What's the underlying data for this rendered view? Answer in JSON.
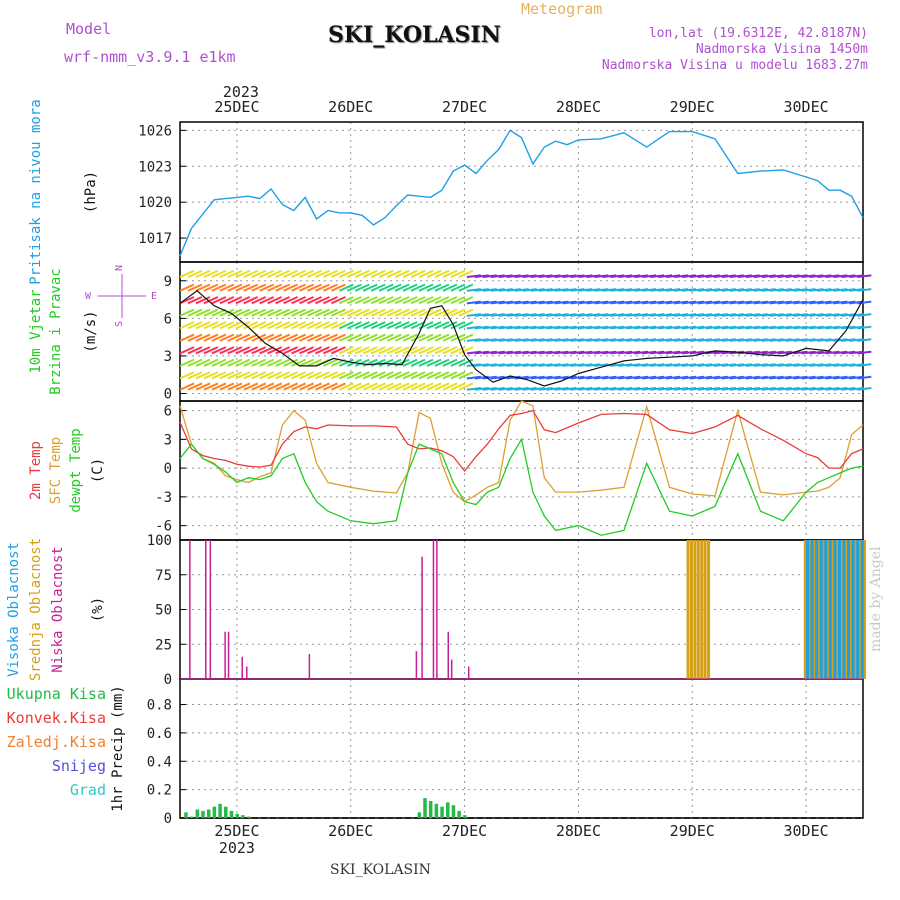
{
  "header": {
    "model_label": "Model",
    "model_name": "wrf-nmm_v3.9.1  e1km",
    "station": "SKI_KOLASIN",
    "product": "Meteogram",
    "coords": "lon,lat (19.6312E, 42.8187N)",
    "elevation": "Nadmorska Visina 1450m",
    "model_elevation": "Nadmorska Visina u modelu 1683.27m",
    "footer_station": "SKI_KOLASIN",
    "credit": "made by Angel"
  },
  "colors": {
    "pressure": "#1ea0e6",
    "temp2m": "#e83c3c",
    "sfc_temp": "#dca032",
    "dewpoint": "#22cc22",
    "high_cloud": "#1ea0e6",
    "mid_cloud": "#d4a017",
    "low_cloud": "#c81e96",
    "total_precip": "#22bb44",
    "conv_precip": "#e83c3c",
    "freezing": "#f08030",
    "snow": "#5050e0",
    "graupel": "#30c8c8",
    "header_purple": "#b050d0",
    "header_orange": "#e8b060"
  },
  "chart_data": [
    {
      "type": "line",
      "name": "pressure",
      "ylabel_lines": [
        "Pritisak na nivou mora",
        "(hPa)"
      ],
      "ylim": [
        1015,
        1026.7
      ],
      "yticks": [
        1017,
        1020,
        1023,
        1026
      ],
      "top_axis_year": "2023",
      "xticks": [
        "25DEC",
        "26DEC",
        "27DEC",
        "28DEC",
        "29DEC",
        "30DEC"
      ],
      "xlim_days": [
        -0.5,
        5.5
      ],
      "grid": true,
      "series": [
        {
          "name": "Pritisak na nivou mora",
          "x": [
            -0.5,
            -0.4,
            -0.3,
            -0.2,
            -0.1,
            0,
            0.1,
            0.2,
            0.3,
            0.4,
            0.5,
            0.6,
            0.7,
            0.8,
            0.9,
            1.0,
            1.1,
            1.2,
            1.3,
            1.4,
            1.5,
            1.6,
            1.7,
            1.8,
            1.9,
            2.0,
            2.1,
            2.2,
            2.3,
            2.4,
            2.5,
            2.6,
            2.7,
            2.8,
            2.9,
            3.0,
            3.2,
            3.4,
            3.6,
            3.8,
            4.0,
            4.2,
            4.4,
            4.6,
            4.8,
            5.0,
            5.1,
            5.2,
            5.3,
            5.4,
            5.5
          ],
          "values": [
            1015.5,
            1017.8,
            1019.0,
            1020.2,
            1020.3,
            1020.4,
            1020.5,
            1020.3,
            1021.1,
            1019.8,
            1019.3,
            1020.4,
            1018.6,
            1019.3,
            1019.1,
            1019.1,
            1018.9,
            1018.1,
            1018.7,
            1019.7,
            1020.6,
            1020.5,
            1020.4,
            1021.0,
            1022.6,
            1023.1,
            1022.4,
            1023.5,
            1024.4,
            1026.0,
            1025.4,
            1023.2,
            1024.6,
            1025.1,
            1024.8,
            1025.2,
            1025.3,
            1025.8,
            1024.6,
            1025.9,
            1025.9,
            1025.3,
            1022.4,
            1022.6,
            1022.7,
            1022.1,
            1021.8,
            1021.0,
            1021.0,
            1020.5,
            1018.7
          ]
        }
      ]
    },
    {
      "type": "line",
      "name": "wind",
      "ylabel_lines": [
        "10m Vjetar",
        "Brzina i Pravac",
        "(m/s)"
      ],
      "compass": [
        "N",
        "E",
        "S",
        "W"
      ],
      "ylim": [
        -0.6,
        10.5
      ],
      "yticks": [
        0,
        3,
        6,
        9
      ],
      "grid": true,
      "series": [
        {
          "name": "10m wind speed",
          "x": [
            -0.5,
            -0.35,
            -0.2,
            -0.05,
            0.1,
            0.25,
            0.4,
            0.55,
            0.7,
            0.85,
            1.0,
            1.15,
            1.3,
            1.45,
            1.6,
            1.7,
            1.8,
            1.9,
            2.0,
            2.1,
            2.25,
            2.4,
            2.55,
            2.7,
            2.85,
            3.0,
            3.2,
            3.4,
            3.6,
            3.8,
            4.0,
            4.2,
            4.4,
            4.6,
            4.8,
            5.0,
            5.2,
            5.35,
            5.5
          ],
          "values": [
            7.2,
            8.2,
            7.0,
            6.4,
            5.3,
            4.0,
            3.2,
            2.2,
            2.2,
            2.8,
            2.5,
            2.3,
            2.4,
            2.3,
            4.8,
            6.8,
            7.0,
            5.5,
            3.1,
            1.9,
            0.9,
            1.4,
            1.1,
            0.6,
            1.0,
            1.6,
            2.1,
            2.6,
            2.8,
            2.9,
            3.0,
            3.4,
            3.3,
            3.1,
            3.0,
            3.6,
            3.4,
            5.0,
            7.5
          ]
        }
      ]
    },
    {
      "type": "line",
      "name": "temperature",
      "ylabel_lines": [
        "2m Temp",
        "SFC Temp",
        "dewpt Temp",
        "(C)"
      ],
      "ylim": [
        -7.5,
        7
      ],
      "yticks": [
        -6,
        -3,
        0,
        3,
        6
      ],
      "grid": true,
      "series": [
        {
          "name": "2m Temp",
          "x": [
            -0.5,
            -0.4,
            -0.3,
            -0.2,
            -0.1,
            0,
            0.1,
            0.2,
            0.3,
            0.4,
            0.5,
            0.6,
            0.7,
            0.8,
            1.0,
            1.2,
            1.4,
            1.5,
            1.6,
            1.7,
            1.8,
            1.9,
            2.0,
            2.1,
            2.2,
            2.3,
            2.4,
            2.5,
            2.6,
            2.7,
            2.8,
            3.0,
            3.2,
            3.4,
            3.6,
            3.8,
            4.0,
            4.2,
            4.4,
            4.6,
            4.8,
            5.0,
            5.1,
            5.2,
            5.3,
            5.4,
            5.5
          ],
          "values": [
            4.8,
            2.0,
            1.3,
            1.0,
            0.8,
            0.4,
            0.2,
            0.1,
            0.3,
            2.5,
            3.8,
            4.3,
            4.1,
            4.5,
            4.4,
            4.4,
            4.3,
            2.5,
            2.0,
            2.1,
            1.8,
            1.2,
            -0.3,
            1.2,
            2.5,
            4.1,
            5.5,
            5.7,
            6.0,
            4.0,
            3.7,
            4.7,
            5.6,
            5.7,
            5.6,
            4.0,
            3.6,
            4.3,
            5.5,
            4.1,
            2.9,
            1.5,
            1.1,
            0.0,
            0.0,
            1.5,
            2.0
          ]
        },
        {
          "name": "SFC Temp",
          "x": [
            -0.5,
            -0.4,
            -0.3,
            -0.2,
            -0.1,
            0,
            0.1,
            0.2,
            0.3,
            0.4,
            0.5,
            0.6,
            0.7,
            0.8,
            1.0,
            1.2,
            1.4,
            1.5,
            1.6,
            1.7,
            1.8,
            1.9,
            2.0,
            2.1,
            2.2,
            2.3,
            2.4,
            2.5,
            2.6,
            2.7,
            2.8,
            3.0,
            3.2,
            3.4,
            3.6,
            3.8,
            4.0,
            4.2,
            4.4,
            4.6,
            4.8,
            5.0,
            5.1,
            5.2,
            5.3,
            5.4,
            5.5
          ],
          "values": [
            6.5,
            2.5,
            1.0,
            0.5,
            -0.8,
            -1.2,
            -1.5,
            -0.9,
            -0.5,
            4.5,
            6.0,
            5.0,
            0.5,
            -1.5,
            -2.0,
            -2.4,
            -2.6,
            -0.5,
            5.8,
            5.2,
            0.5,
            -2.5,
            -3.5,
            -2.8,
            -2.0,
            -1.5,
            5.0,
            7.0,
            6.5,
            -1.0,
            -2.5,
            -2.5,
            -2.3,
            -2.0,
            6.4,
            -2.0,
            -2.7,
            -2.9,
            6.0,
            -2.5,
            -2.8,
            -2.5,
            -2.4,
            -2.0,
            -1.0,
            3.5,
            4.5
          ]
        },
        {
          "name": "dewpt Temp",
          "x": [
            -0.5,
            -0.4,
            -0.3,
            -0.2,
            -0.1,
            0,
            0.1,
            0.2,
            0.3,
            0.4,
            0.5,
            0.6,
            0.7,
            0.8,
            1.0,
            1.2,
            1.4,
            1.5,
            1.6,
            1.7,
            1.8,
            1.9,
            2.0,
            2.1,
            2.2,
            2.3,
            2.4,
            2.5,
            2.6,
            2.7,
            2.8,
            3.0,
            3.2,
            3.4,
            3.6,
            3.8,
            4.0,
            4.2,
            4.4,
            4.6,
            4.8,
            5.0,
            5.1,
            5.2,
            5.3,
            5.4,
            5.5
          ],
          "values": [
            1.0,
            2.5,
            1.0,
            0.4,
            -0.4,
            -1.5,
            -1.0,
            -1.2,
            -0.8,
            1.0,
            1.5,
            -1.5,
            -3.5,
            -4.5,
            -5.5,
            -5.8,
            -5.5,
            -0.5,
            2.5,
            2.0,
            1.5,
            -1.5,
            -3.5,
            -3.8,
            -2.5,
            -2.0,
            1.0,
            3.0,
            -2.5,
            -5.0,
            -6.5,
            -6.0,
            -7.0,
            -6.5,
            0.5,
            -4.5,
            -5.0,
            -4.0,
            1.5,
            -4.5,
            -5.5,
            -2.5,
            -1.5,
            -1.0,
            -0.5,
            0.0,
            0.2
          ]
        }
      ]
    },
    {
      "type": "bar",
      "name": "cloud_cover",
      "ylabel_lines": [
        "Visoka Oblacnost",
        "Srednja Oblacnost",
        "Niska Oblacnost",
        "(%)"
      ],
      "ylim": [
        0,
        100
      ],
      "yticks": [
        0,
        25,
        50,
        75,
        100
      ],
      "grid": true,
      "series": [
        {
          "name": "Niska Oblacnost",
          "x": [
            -0.42,
            -0.28,
            -0.24,
            -0.11,
            -0.08,
            0.04,
            0.08,
            0.63,
            1.57,
            1.62,
            1.72,
            1.75,
            1.85,
            1.88,
            2.03
          ],
          "values": [
            100,
            100,
            100,
            34,
            34,
            16,
            9,
            18,
            20,
            88,
            100,
            100,
            34,
            14,
            9
          ]
        },
        {
          "name": "Srednja Oblacnost",
          "x": [
            3.95,
            3.98,
            4.01,
            4.04,
            4.07,
            4.1,
            4.13,
            4.98,
            5.02,
            5.06,
            5.1,
            5.14,
            5.18,
            5.22,
            5.26,
            5.3,
            5.34,
            5.38,
            5.42,
            5.46,
            5.5
          ],
          "values": [
            100,
            100,
            100,
            100,
            100,
            100,
            100,
            100,
            100,
            100,
            100,
            100,
            100,
            100,
            100,
            100,
            100,
            100,
            100,
            100,
            100
          ]
        },
        {
          "name": "Visoka Oblacnost",
          "x": [
            5.0,
            5.04,
            5.08,
            5.12,
            5.16,
            5.2,
            5.24,
            5.28,
            5.32,
            5.36,
            5.4,
            5.44,
            5.48
          ],
          "values": [
            100,
            100,
            100,
            100,
            100,
            100,
            100,
            100,
            100,
            100,
            100,
            100,
            100
          ]
        }
      ]
    },
    {
      "type": "bar",
      "name": "precipitation",
      "ylabel_lines": [
        "1hr Precip (mm)"
      ],
      "legend": [
        "Ukupna Kisa",
        "Konvek.Kisa",
        "Zaledj.Kisa",
        "Snijeg",
        "Grad"
      ],
      "ylim": [
        0,
        0.98
      ],
      "yticks": [
        0,
        0.2,
        0.4,
        0.6,
        0.8
      ],
      "bottom_axis_year": "2023",
      "xticks": [
        "25DEC",
        "26DEC",
        "27DEC",
        "28DEC",
        "29DEC",
        "30DEC"
      ],
      "grid": true,
      "series": [
        {
          "name": "Ukupna Kisa",
          "x": [
            -0.45,
            -0.4,
            -0.35,
            -0.3,
            -0.25,
            -0.2,
            -0.15,
            -0.1,
            -0.05,
            0.0,
            0.05,
            0.1,
            1.6,
            1.65,
            1.7,
            1.75,
            1.8,
            1.85,
            1.9,
            1.95,
            2.0
          ],
          "values": [
            0.04,
            0.01,
            0.06,
            0.05,
            0.06,
            0.08,
            0.1,
            0.08,
            0.05,
            0.03,
            0.02,
            0.01,
            0.04,
            0.14,
            0.12,
            0.1,
            0.08,
            0.11,
            0.09,
            0.05,
            0.02
          ]
        }
      ]
    }
  ]
}
